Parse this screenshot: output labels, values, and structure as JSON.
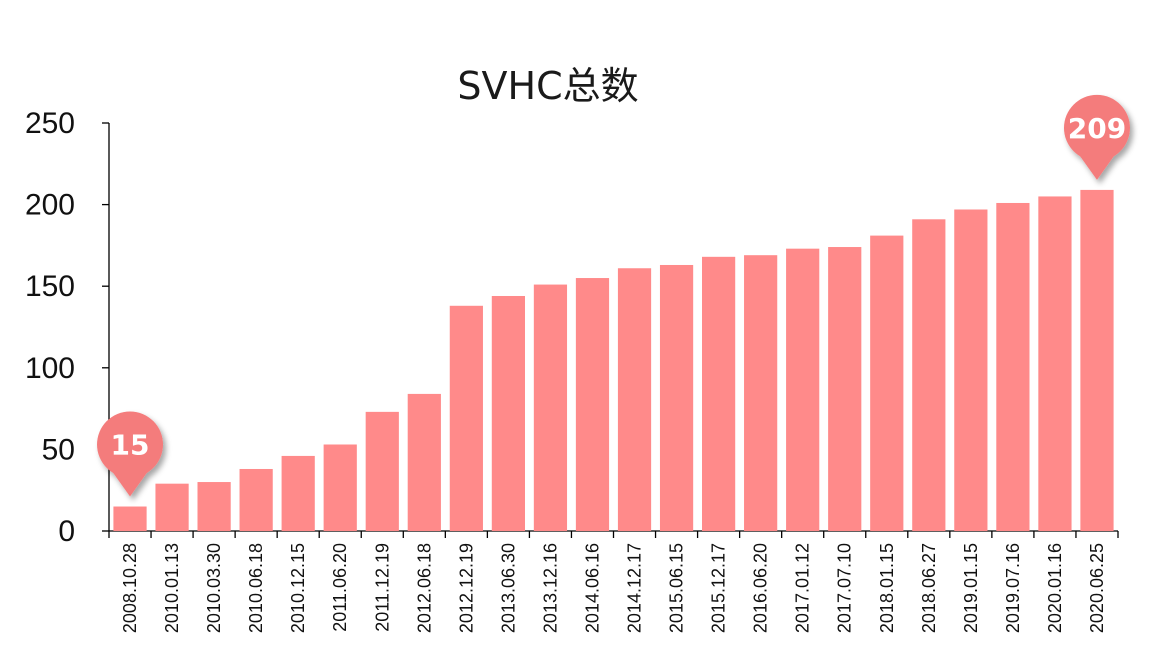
{
  "chart_data": {
    "type": "bar",
    "title": "SVHC总数",
    "xlabel": "",
    "ylabel": "",
    "ylim": [
      0,
      250
    ],
    "yticks": [
      0,
      50,
      100,
      150,
      200,
      250
    ],
    "categories": [
      "2008.10.28",
      "2010.01.13",
      "2010.03.30",
      "2010.06.18",
      "2010.12.15",
      "2011.06.20",
      "2011.12.19",
      "2012.06.18",
      "2012.12.19",
      "2013.06.30",
      "2013.12.16",
      "2014.06.16",
      "2014.12.17",
      "2015.06.15",
      "2015.12.17",
      "2016.06.20",
      "2017.01.12",
      "2017.07.10",
      "2018.01.15",
      "2018.06.27",
      "2019.01.15",
      "2019.07.16",
      "2020.01.16",
      "2020.06.25"
    ],
    "values": [
      15,
      29,
      30,
      38,
      46,
      53,
      73,
      84,
      138,
      144,
      151,
      155,
      161,
      163,
      168,
      169,
      173,
      174,
      181,
      191,
      197,
      201,
      205,
      209
    ],
    "callouts": [
      {
        "index": 0,
        "label": "15"
      },
      {
        "index": 23,
        "label": "209"
      }
    ],
    "colors": {
      "bar": "#FF8A8A",
      "callout": "#F47C7C",
      "axis": "#000000"
    },
    "grid": false,
    "legend": "none"
  }
}
